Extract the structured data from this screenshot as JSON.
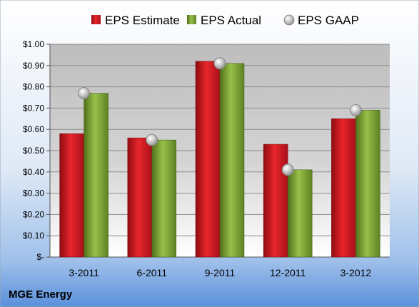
{
  "chart_data": {
    "type": "bar",
    "categories": [
      "3-2011",
      "6-2011",
      "9-2011",
      "12-2011",
      "3-2012"
    ],
    "series": [
      {
        "name": "EPS Estimate",
        "kind": "bar",
        "color": "#c0141b",
        "values": [
          0.58,
          0.56,
          0.92,
          0.53,
          0.65
        ]
      },
      {
        "name": "EPS Actual",
        "kind": "bar",
        "color": "#6f9a2a",
        "values": [
          0.77,
          0.55,
          0.91,
          0.41,
          0.69
        ]
      },
      {
        "name": "EPS GAAP",
        "kind": "scatter",
        "color": "#a8a8a8",
        "values": [
          0.77,
          0.55,
          0.91,
          0.41,
          0.69
        ]
      }
    ],
    "y_ticks": [
      "$-",
      "$0.10",
      "$0.20",
      "$0.30",
      "$0.40",
      "$0.50",
      "$0.60",
      "$0.70",
      "$0.80",
      "$0.90",
      "$1.00"
    ],
    "ylim": [
      0,
      1.0
    ],
    "grid": true,
    "legend_position": "top",
    "company": "MGE Energy"
  }
}
